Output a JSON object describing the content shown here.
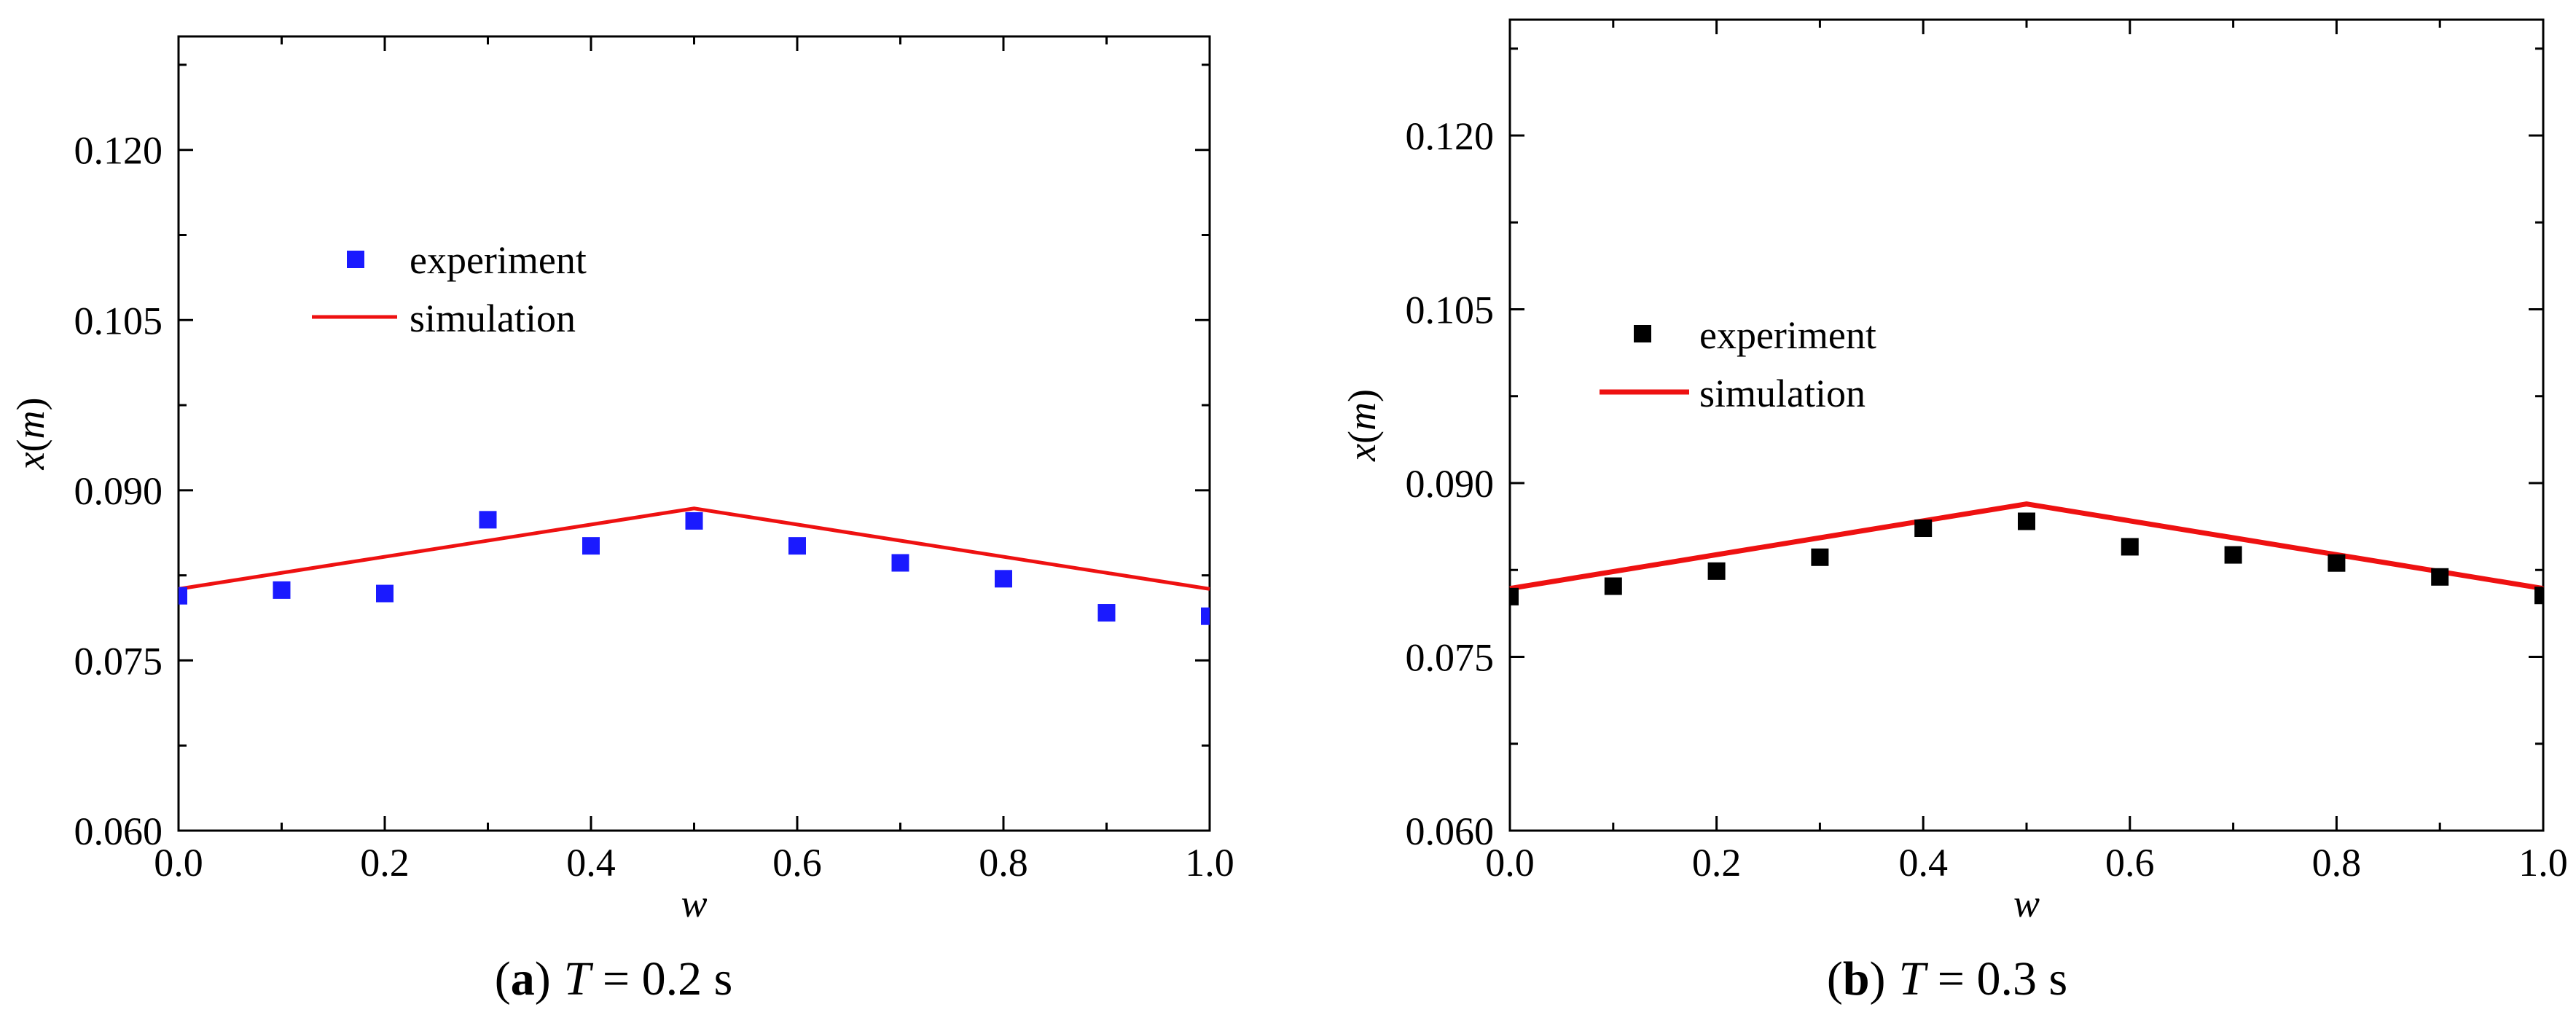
{
  "chart_data": [
    {
      "type": "scatter+line",
      "panel": "a",
      "caption_prefix": "(",
      "caption_letter": "a",
      "caption_suffix": ")",
      "caption_var": "T",
      "caption_value": " = 0.2 s",
      "xlabel": "w",
      "ylabel_var": "x",
      "ylabel_open": "(",
      "ylabel_unit": "m",
      "ylabel_close": ")",
      "xlim": [
        0,
        1
      ],
      "ylim": [
        0.06,
        0.13
      ],
      "xticks": [
        "0.0",
        "0.2",
        "0.4",
        "0.6",
        "0.8",
        "1.0"
      ],
      "yticks": [
        "0.060",
        "0.075",
        "0.090",
        "0.105",
        "0.120"
      ],
      "legend_position": "upper-left",
      "series": [
        {
          "name": "experiment",
          "kind": "scatter",
          "color": "#1a1aff",
          "x": [
            0.0,
            0.1,
            0.2,
            0.3,
            0.4,
            0.5,
            0.6,
            0.7,
            0.8,
            0.9,
            1.0
          ],
          "y": [
            0.0807,
            0.0812,
            0.0809,
            0.0874,
            0.0851,
            0.0873,
            0.0851,
            0.0836,
            0.0822,
            0.0792,
            0.0789
          ]
        },
        {
          "name": "simulation",
          "kind": "line",
          "color": "#ee1111",
          "x": [
            0.0,
            0.5,
            1.0
          ],
          "y": [
            0.0813,
            0.0884,
            0.0813
          ]
        }
      ]
    },
    {
      "type": "scatter+line",
      "panel": "b",
      "caption_prefix": "(",
      "caption_letter": "b",
      "caption_suffix": ")",
      "caption_var": "T",
      "caption_value": " = 0.3 s",
      "xlabel": "w",
      "ylabel_var": "x",
      "ylabel_open": "(",
      "ylabel_unit": "m",
      "ylabel_close": ")",
      "xlim": [
        0,
        1
      ],
      "ylim": [
        0.06,
        0.13
      ],
      "xticks": [
        "0.0",
        "0.2",
        "0.4",
        "0.6",
        "0.8",
        "1.0"
      ],
      "yticks": [
        "0.060",
        "0.075",
        "0.090",
        "0.105",
        "0.120"
      ],
      "legend_position": "upper-left",
      "series": [
        {
          "name": "experiment",
          "kind": "scatter",
          "color": "#000000",
          "x": [
            0.0,
            0.1,
            0.2,
            0.3,
            0.4,
            0.5,
            0.6,
            0.7,
            0.8,
            0.9,
            1.0
          ],
          "y": [
            0.0802,
            0.0811,
            0.0824,
            0.0836,
            0.0861,
            0.0867,
            0.0845,
            0.0838,
            0.0831,
            0.0819,
            0.0803
          ]
        },
        {
          "name": "simulation",
          "kind": "line",
          "color": "#ee1111",
          "x": [
            0.0,
            0.5,
            1.0
          ],
          "y": [
            0.0809,
            0.0882,
            0.0809
          ]
        }
      ]
    }
  ]
}
